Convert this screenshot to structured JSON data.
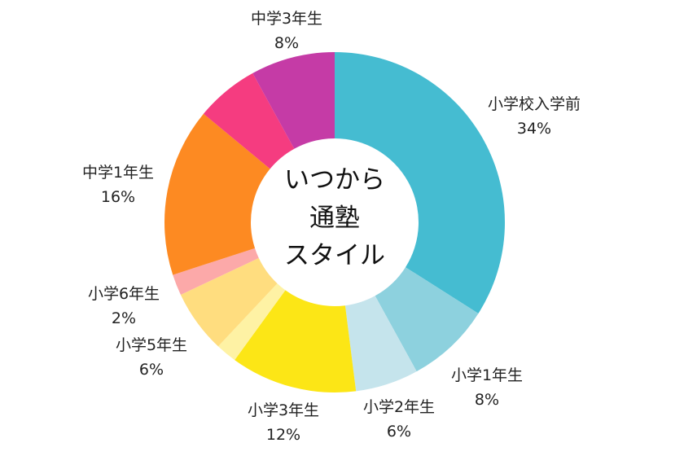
{
  "chart_data": {
    "type": "pie",
    "donut": true,
    "center_text": [
      "いつから",
      "通塾",
      "スタイル"
    ],
    "slices": [
      {
        "label": "小学校入学前",
        "value": 34,
        "value_label": "34%",
        "color": "#45BCD1"
      },
      {
        "label": "小学1年生",
        "value": 8,
        "value_label": "8%",
        "color": "#8DD1DE"
      },
      {
        "label": "小学2年生",
        "value": 6,
        "value_label": "6%",
        "color": "#C5E4EC"
      },
      {
        "label": "小学3年生",
        "value": 12,
        "value_label": "12%",
        "color": "#FCE616"
      },
      {
        "label": "",
        "value": 2,
        "value_label": "",
        "color": "#FEF2A4"
      },
      {
        "label": "小学5年生",
        "value": 6,
        "value_label": "6%",
        "color": "#FFDD7F"
      },
      {
        "label": "小学6年生",
        "value": 2,
        "value_label": "2%",
        "color": "#FCA9A9"
      },
      {
        "label": "中学1年生",
        "value": 16,
        "value_label": "16%",
        "color": "#FD8A22"
      },
      {
        "label": "",
        "value": 6,
        "value_label": "",
        "color": "#F53C80"
      },
      {
        "label": "中学3年生",
        "value": 8,
        "value_label": "8%",
        "color": "#C53BA6"
      }
    ],
    "legend": "none"
  }
}
